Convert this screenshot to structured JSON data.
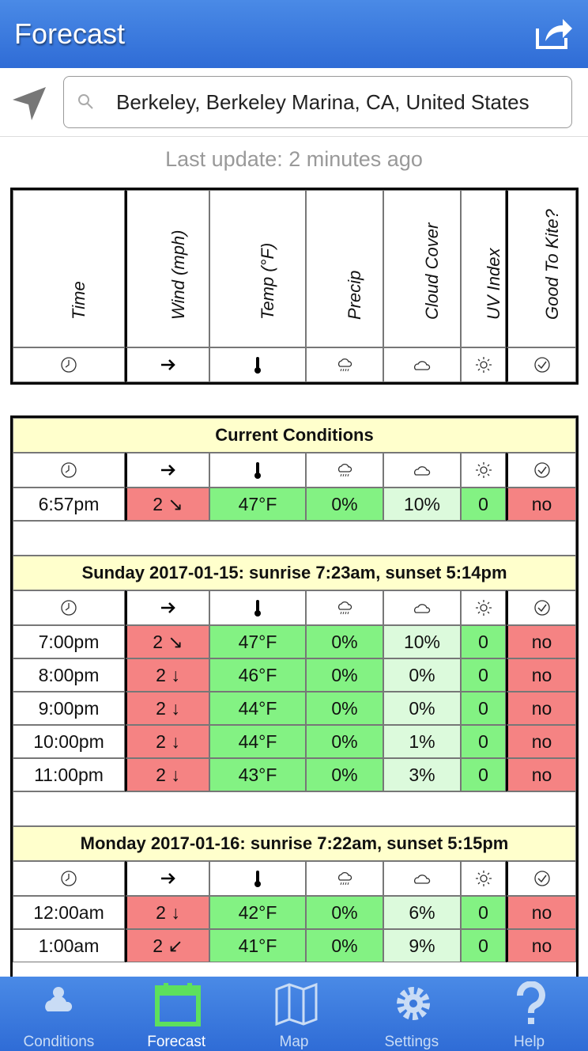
{
  "header": {
    "title": "Forecast"
  },
  "search": {
    "query": "Berkeley, Berkeley Marina, CA, United States"
  },
  "last_update": "Last update: 2 minutes ago",
  "columns": [
    "Time",
    "Wind (mph)",
    "Temp (°F)",
    "Precip",
    "Cloud Cover",
    "UV Index",
    "Good To Kite?"
  ],
  "sections": [
    {
      "title": "Current Conditions",
      "rows": [
        [
          "6:57pm",
          "2 ↘",
          "47°F",
          "0%",
          "10%",
          "0",
          "no"
        ]
      ]
    },
    {
      "title": "Sunday 2017-01-15: sunrise 7:23am, sunset 5:14pm",
      "rows": [
        [
          "7:00pm",
          "2 ↘",
          "47°F",
          "0%",
          "10%",
          "0",
          "no"
        ],
        [
          "8:00pm",
          "2 ↓",
          "46°F",
          "0%",
          "0%",
          "0",
          "no"
        ],
        [
          "9:00pm",
          "2 ↓",
          "44°F",
          "0%",
          "0%",
          "0",
          "no"
        ],
        [
          "10:00pm",
          "2 ↓",
          "44°F",
          "0%",
          "1%",
          "0",
          "no"
        ],
        [
          "11:00pm",
          "2 ↓",
          "43°F",
          "0%",
          "3%",
          "0",
          "no"
        ]
      ]
    },
    {
      "title": "Monday 2017-01-16: sunrise 7:22am, sunset 5:15pm",
      "rows": [
        [
          "12:00am",
          "2 ↓",
          "42°F",
          "0%",
          "6%",
          "0",
          "no"
        ],
        [
          "1:00am",
          "2 ↙",
          "41°F",
          "0%",
          "9%",
          "0",
          "no"
        ]
      ]
    }
  ],
  "tabs": [
    "Conditions",
    "Forecast",
    "Map",
    "Settings",
    "Help"
  ]
}
